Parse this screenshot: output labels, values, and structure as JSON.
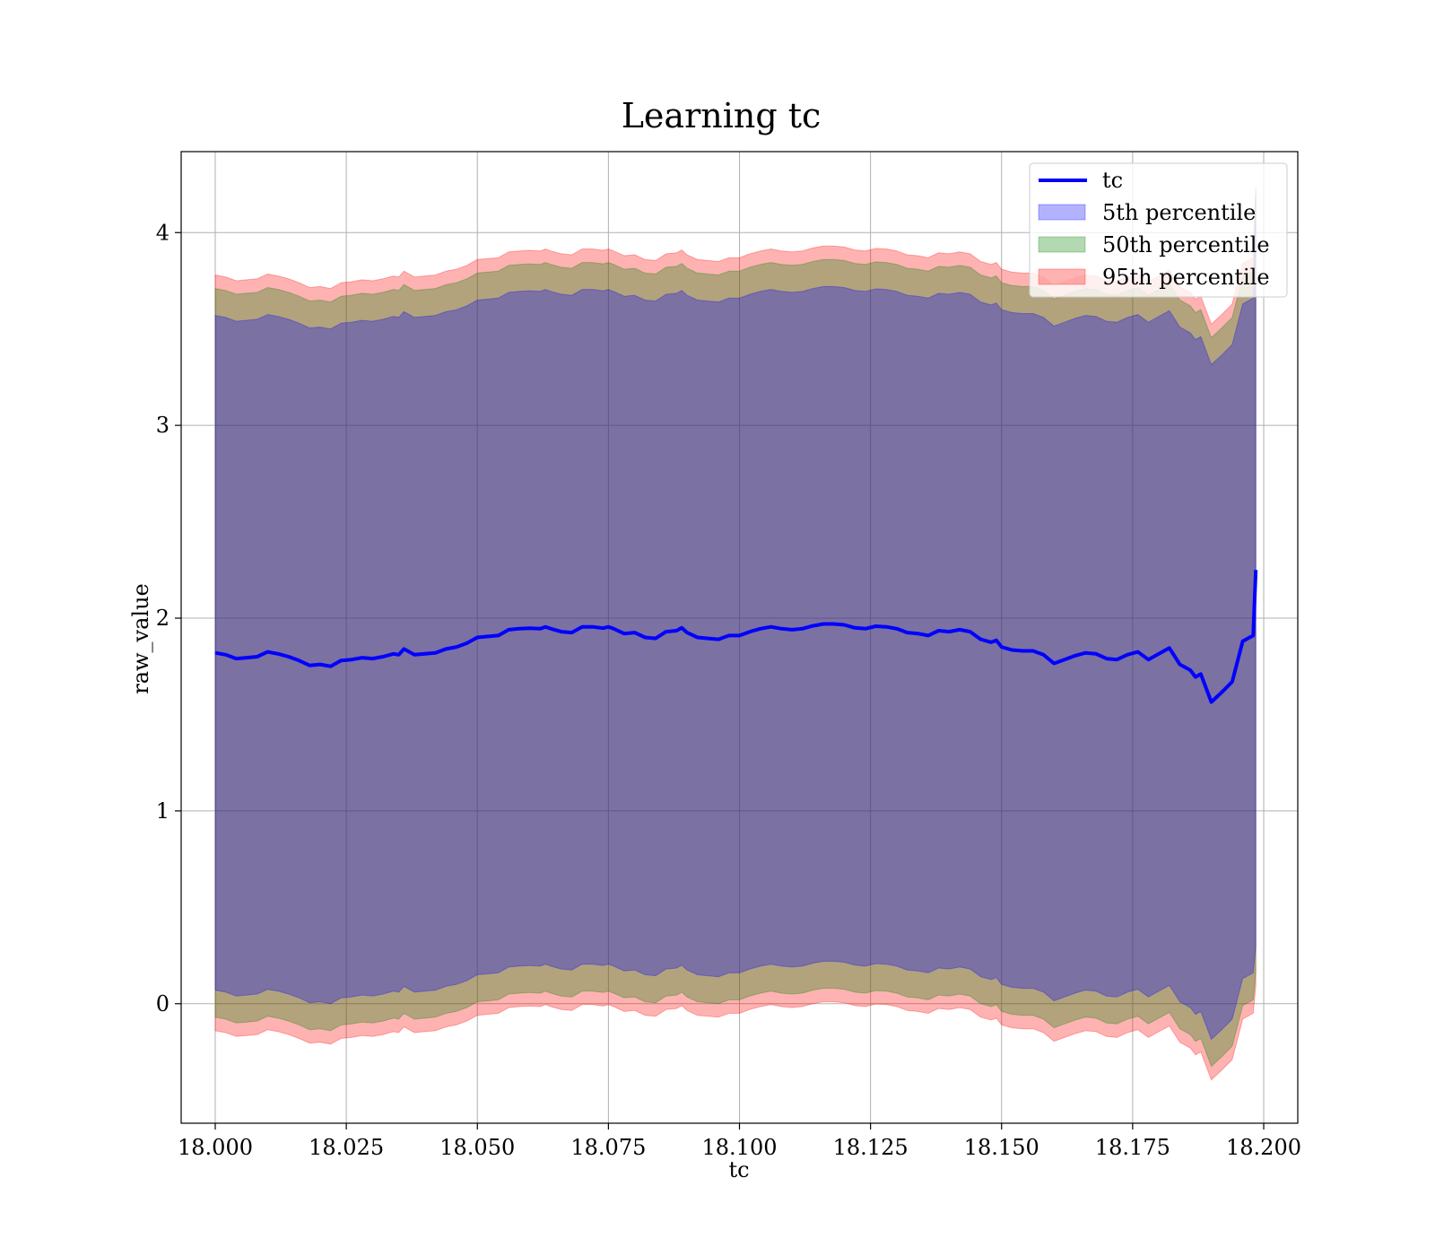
{
  "chart_data": {
    "type": "line",
    "title": "Learning tc",
    "xlabel": "tc",
    "ylabel": "raw_value",
    "xlim": [
      17.9935,
      18.2065
    ],
    "ylim": [
      -0.62,
      4.42
    ],
    "xticks": [
      18.0,
      18.025,
      18.05,
      18.075,
      18.1,
      18.125,
      18.15,
      18.175,
      18.2
    ],
    "xtick_labels": [
      "18.000",
      "18.025",
      "18.050",
      "18.075",
      "18.100",
      "18.125",
      "18.150",
      "18.175",
      "18.200"
    ],
    "yticks": [
      0,
      1,
      2,
      3,
      4
    ],
    "ytick_labels": [
      "0",
      "1",
      "2",
      "3",
      "4"
    ],
    "grid": true,
    "legend_position": "top-right",
    "colors": {
      "line": "#0000ff",
      "p5": "#0000ff",
      "p50": "#008000",
      "p95": "#ff0000"
    },
    "x": [
      18.0,
      18.002,
      18.004,
      18.006,
      18.008,
      18.01,
      18.012,
      18.014,
      18.016,
      18.018,
      18.02,
      18.022,
      18.024,
      18.026,
      18.028,
      18.03,
      18.032,
      18.034,
      18.035,
      18.036,
      18.038,
      18.04,
      18.042,
      18.044,
      18.046,
      18.048,
      18.05,
      18.052,
      18.054,
      18.056,
      18.058,
      18.06,
      18.062,
      18.063,
      18.064,
      18.066,
      18.068,
      18.07,
      18.072,
      18.074,
      18.075,
      18.076,
      18.078,
      18.08,
      18.082,
      18.084,
      18.086,
      18.088,
      18.089,
      18.09,
      18.092,
      18.094,
      18.096,
      18.098,
      18.1,
      18.102,
      18.104,
      18.106,
      18.108,
      18.11,
      18.112,
      18.114,
      18.116,
      18.118,
      18.12,
      18.122,
      18.124,
      18.126,
      18.128,
      18.13,
      18.132,
      18.134,
      18.136,
      18.138,
      18.14,
      18.142,
      18.144,
      18.146,
      18.148,
      18.149,
      18.15,
      18.152,
      18.154,
      18.156,
      18.158,
      18.16,
      18.162,
      18.164,
      18.166,
      18.168,
      18.17,
      18.172,
      18.174,
      18.176,
      18.178,
      18.18,
      18.182,
      18.184,
      18.186,
      18.187,
      18.188,
      18.19,
      18.192,
      18.194,
      18.196,
      18.198
    ],
    "series": [
      {
        "name": "tc",
        "values": [
          1.82,
          1.81,
          1.79,
          1.795,
          1.8,
          1.825,
          1.815,
          1.8,
          1.78,
          1.755,
          1.76,
          1.75,
          1.78,
          1.785,
          1.795,
          1.79,
          1.8,
          1.815,
          1.81,
          1.84,
          1.81,
          1.815,
          1.82,
          1.84,
          1.85,
          1.87,
          1.9,
          1.905,
          1.91,
          1.94,
          1.945,
          1.948,
          1.945,
          1.955,
          1.945,
          1.93,
          1.925,
          1.955,
          1.955,
          1.948,
          1.955,
          1.945,
          1.92,
          1.925,
          1.9,
          1.895,
          1.93,
          1.935,
          1.95,
          1.925,
          1.9,
          1.895,
          1.89,
          1.91,
          1.91,
          1.93,
          1.945,
          1.955,
          1.945,
          1.94,
          1.945,
          1.96,
          1.97,
          1.97,
          1.965,
          1.95,
          1.945,
          1.958,
          1.955,
          1.945,
          1.925,
          1.92,
          1.91,
          1.935,
          1.93,
          1.94,
          1.93,
          1.89,
          1.875,
          1.885,
          1.85,
          1.835,
          1.83,
          1.83,
          1.81,
          1.765,
          1.785,
          1.805,
          1.82,
          1.815,
          1.79,
          1.785,
          1.81,
          1.825,
          1.785,
          1.815,
          1.845,
          1.76,
          1.73,
          1.695,
          1.71,
          1.565,
          1.615,
          1.67,
          1.88,
          1.91
        ]
      }
    ],
    "bands": [
      {
        "name": "5th percentile",
        "color": "#0000ff",
        "half_width": 1.75
      },
      {
        "name": "50th percentile",
        "color": "#008000",
        "half_width": 1.89
      },
      {
        "name": "95th percentile",
        "color": "#ff0000",
        "half_width": 1.96
      }
    ],
    "line_end": {
      "x": 18.1985,
      "y": 2.25,
      "lower": 0.3,
      "upper": 4.2
    }
  }
}
